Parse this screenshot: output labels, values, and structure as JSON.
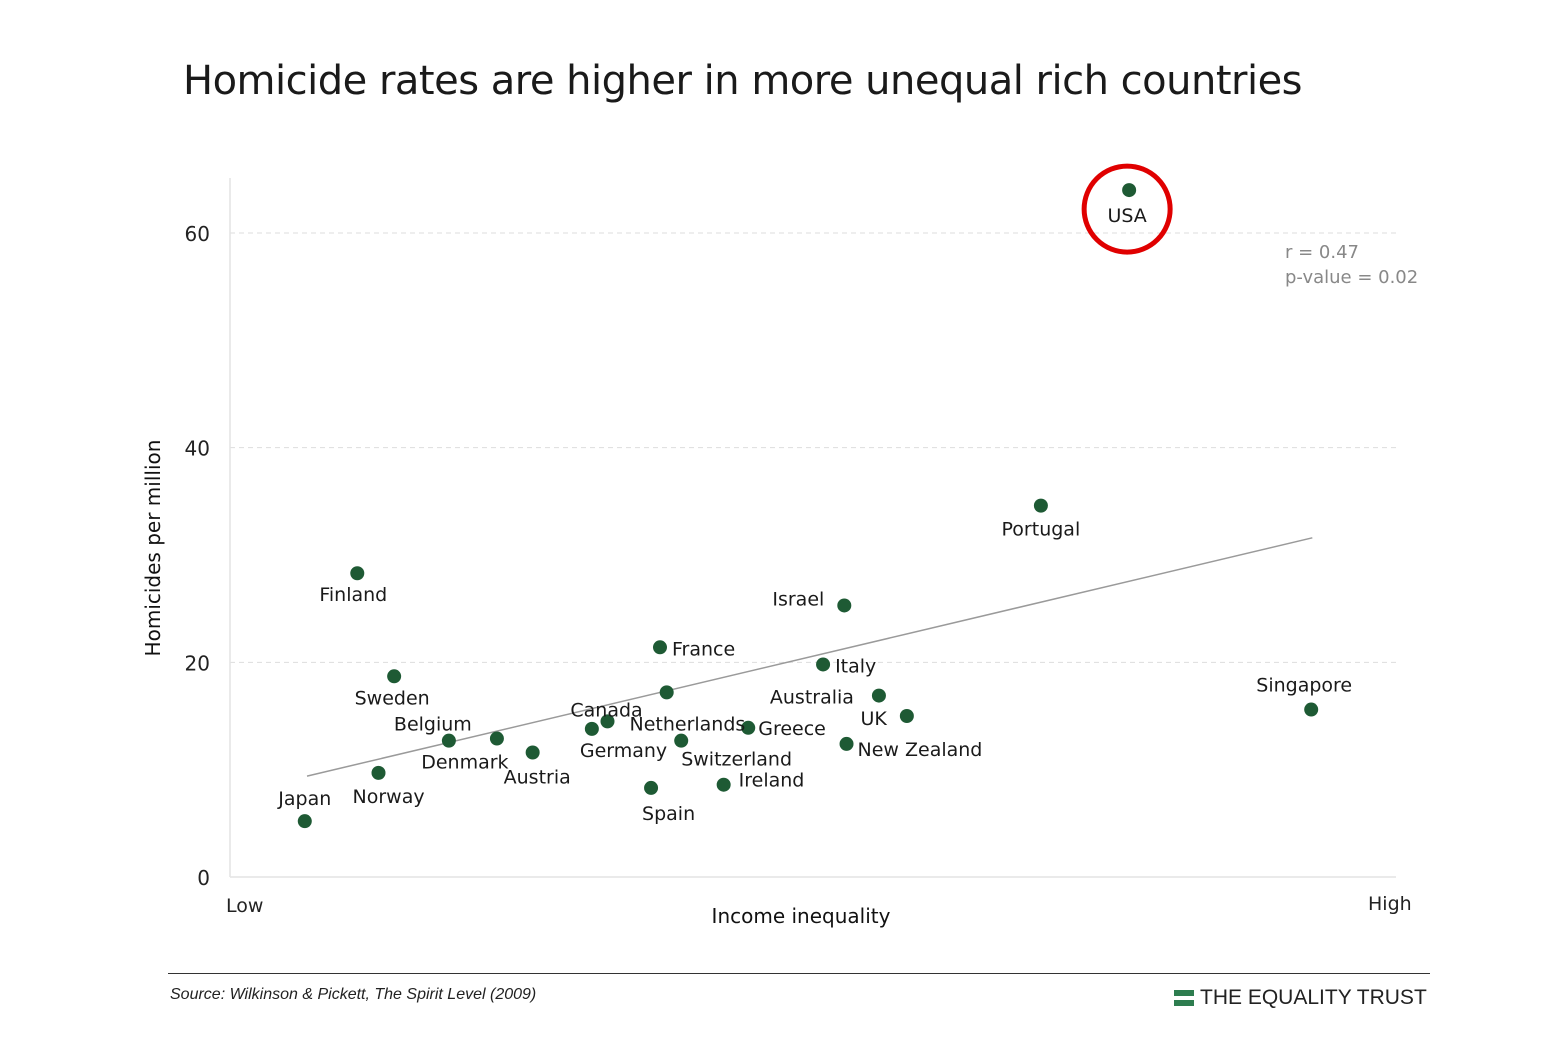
{
  "title": "Homicide rates are higher in more unequal rich countries",
  "footer": {
    "source": "Source: Wilkinson & Pickett, The Spirit Level (2009)",
    "brand": "THE EQUALITY TRUST",
    "brand_color": "#2e7d4f"
  },
  "chart_data": {
    "type": "scatter",
    "title": "Homicide rates are higher in more unequal rich countries",
    "xlabel": "Income inequality",
    "ylabel": "Homicides per million",
    "x_tick_labels": [
      "Low",
      "High"
    ],
    "yticks": [
      0,
      20,
      40,
      60
    ],
    "ylim": [
      0,
      65
    ],
    "xlim": [
      0,
      100
    ],
    "grid": "horizontal dashed",
    "point_color": "#1e5a34",
    "stats": {
      "r": "r = 0.47",
      "p": "p-value = 0.02"
    },
    "highlight": {
      "country": "USA",
      "color": "#e00000"
    },
    "trendline": {
      "x": [
        6,
        96
      ],
      "y": [
        9.4,
        31.6
      ]
    },
    "points": [
      {
        "label": "USA",
        "x": 79.6,
        "y": 64.0
      },
      {
        "label": "Portugal",
        "x": 71.7,
        "y": 34.6
      },
      {
        "label": "Finland",
        "x": 10.5,
        "y": 28.3
      },
      {
        "label": "Israel",
        "x": 54.1,
        "y": 25.3
      },
      {
        "label": "France",
        "x": 37.6,
        "y": 21.4
      },
      {
        "label": "Italy",
        "x": 52.2,
        "y": 19.8
      },
      {
        "label": "Sweden",
        "x": 13.8,
        "y": 18.7
      },
      {
        "label": "Canada",
        "x": 38.2,
        "y": 17.2
      },
      {
        "label": "Australia",
        "x": 57.2,
        "y": 16.9
      },
      {
        "label": "Singapore",
        "x": 95.9,
        "y": 15.6
      },
      {
        "label": "UK",
        "x": 59.7,
        "y": 15.0
      },
      {
        "label": "Netherlands",
        "x": 32.9,
        "y": 14.5
      },
      {
        "label": "Germany",
        "x": 31.5,
        "y": 13.8
      },
      {
        "label": "Greece",
        "x": 45.5,
        "y": 13.9
      },
      {
        "label": "Belgium",
        "x": 18.7,
        "y": 12.7
      },
      {
        "label": "Denmark",
        "x": 23.0,
        "y": 12.9
      },
      {
        "label": "Switzerland",
        "x": 39.5,
        "y": 12.7
      },
      {
        "label": "New Zealand",
        "x": 54.3,
        "y": 12.4
      },
      {
        "label": "Austria",
        "x": 26.2,
        "y": 11.6
      },
      {
        "label": "Norway",
        "x": 12.4,
        "y": 9.7
      },
      {
        "label": "Ireland",
        "x": 43.3,
        "y": 8.6
      },
      {
        "label": "Spain",
        "x": 36.8,
        "y": 8.3
      },
      {
        "label": "Japan",
        "x": 5.8,
        "y": 5.2
      }
    ]
  }
}
